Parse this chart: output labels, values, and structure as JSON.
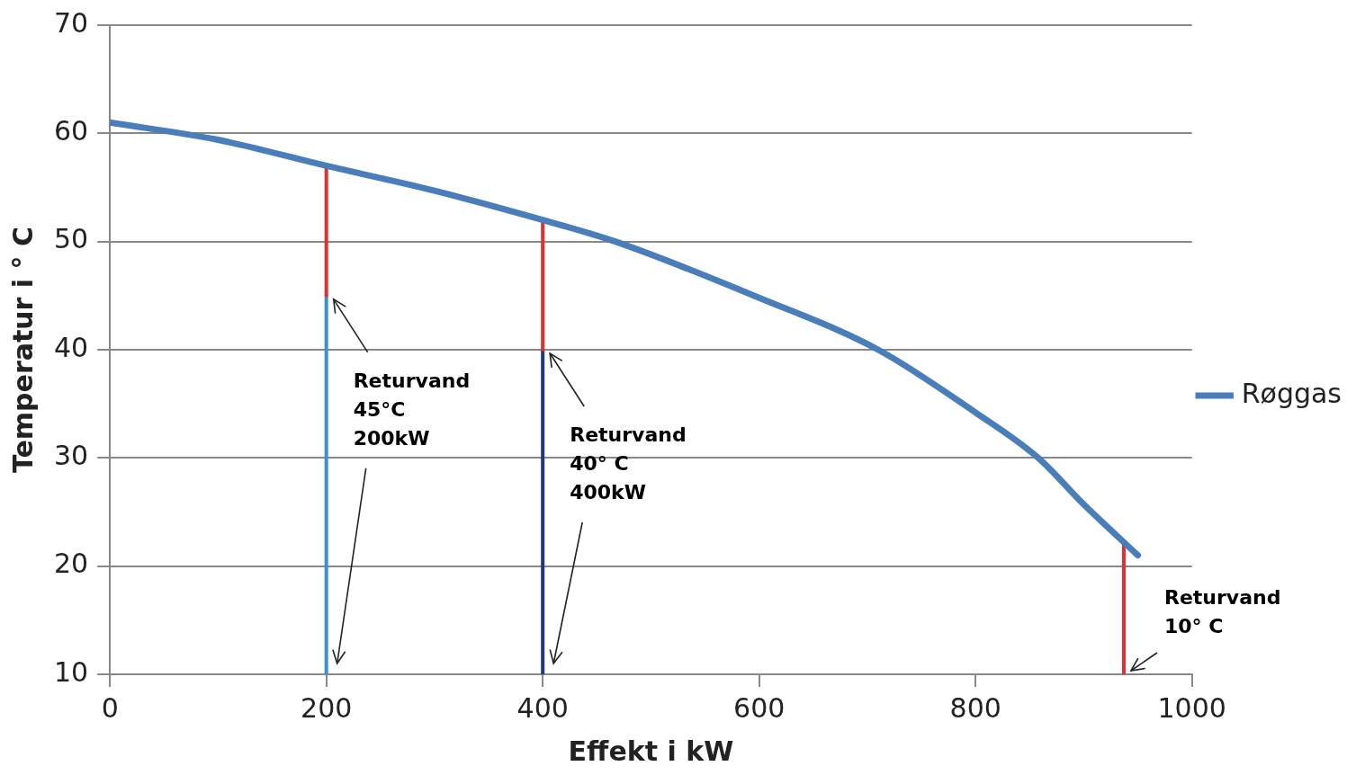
{
  "chart_data": {
    "type": "line",
    "xlabel": "Effekt i kW",
    "ylabel": "Temperatur i ° C",
    "xlim": [
      0,
      1000
    ],
    "xticks": [
      0,
      200,
      400,
      600,
      800,
      1000
    ],
    "ylim": [
      10,
      70
    ],
    "yticks": [
      10,
      20,
      30,
      40,
      50,
      60,
      70
    ],
    "grid": "y",
    "legend": "right",
    "marker": "none",
    "line_style": "solid",
    "series": [
      {
        "name": "Røggas",
        "color": "#4a7ebb",
        "x": [
          0,
          100,
          200,
          300,
          400,
          467,
          600,
          710,
          800,
          858,
          900,
          950
        ],
        "values": [
          61,
          59.4,
          57,
          54.7,
          52,
          50,
          44.8,
          40,
          34.2,
          30,
          25.7,
          21
        ]
      },
      {
        "color": "#e03030",
        "x": [
          200,
          200
        ],
        "values": [
          45,
          57
        ]
      },
      {
        "color": "#3a8fd8",
        "x": [
          200,
          200
        ],
        "values": [
          10,
          45
        ]
      },
      {
        "color": "#e03030",
        "x": [
          400,
          400
        ],
        "values": [
          40,
          52
        ]
      },
      {
        "color": "#1f3a7a",
        "x": [
          400,
          400
        ],
        "values": [
          10,
          40
        ]
      },
      {
        "color": "#e03030",
        "x": [
          937,
          937
        ],
        "values": [
          10,
          22
        ]
      }
    ],
    "annotations": [
      {
        "text": "Returvand\n45°C\n200kW",
        "x": 200,
        "y": 45
      },
      {
        "text": "Returvand\n40° C\n400kW",
        "x": 400,
        "y": 40
      },
      {
        "text": "Returvand\n10° C",
        "x": 937,
        "y": 10
      }
    ]
  }
}
